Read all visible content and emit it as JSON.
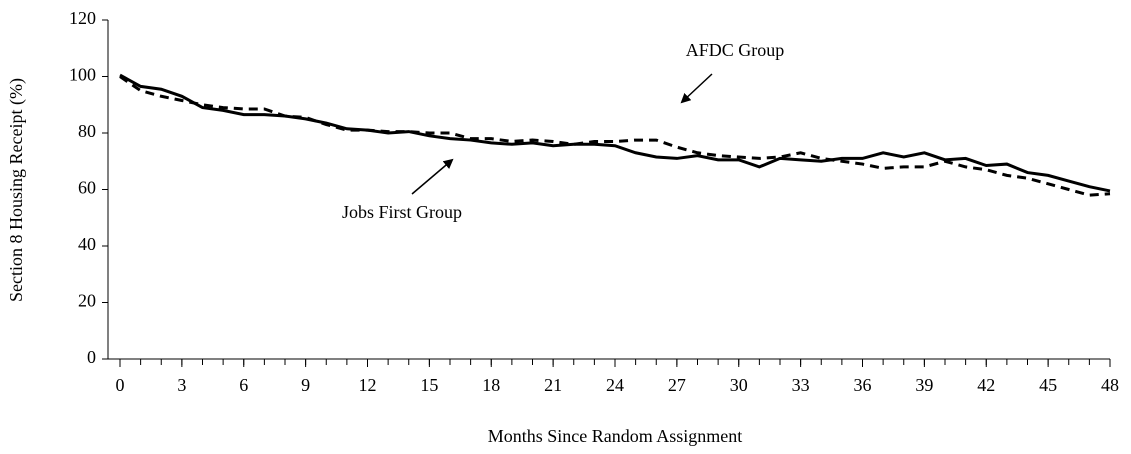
{
  "chart_data": {
    "type": "line",
    "x_label": "Months Since Random Assignment",
    "y_label": "Section 8 Housing Receipt (%)",
    "x": [
      0,
      1,
      2,
      3,
      4,
      5,
      6,
      7,
      8,
      9,
      10,
      11,
      12,
      13,
      14,
      15,
      16,
      17,
      18,
      19,
      20,
      21,
      22,
      23,
      24,
      25,
      26,
      27,
      28,
      29,
      30,
      31,
      32,
      33,
      34,
      35,
      36,
      37,
      38,
      39,
      40,
      41,
      42,
      43,
      44,
      45,
      46,
      47,
      48
    ],
    "series": [
      {
        "name": "Jobs First Group",
        "color": "#000000",
        "dash": false,
        "values": [
          100.5,
          96.5,
          95.5,
          93,
          89,
          88,
          86.5,
          86.5,
          86,
          85,
          83.5,
          81.5,
          81,
          80,
          80.5,
          79,
          78,
          77.5,
          76.5,
          76,
          76.5,
          75.5,
          76,
          76,
          75.5,
          73,
          71.5,
          71,
          72,
          70.5,
          70.5,
          68,
          71,
          70.5,
          70,
          71,
          71,
          73,
          71.5,
          73,
          70.5,
          71,
          68.5,
          69,
          66,
          65,
          63,
          61,
          59.5
        ]
      },
      {
        "name": "AFDC Group",
        "color": "#000000",
        "dash": true,
        "values": [
          100,
          95,
          93,
          91.5,
          90,
          89,
          88.5,
          88.5,
          86,
          85.5,
          83,
          81,
          81,
          80.5,
          80.5,
          80,
          80,
          78,
          78,
          77,
          77.5,
          77,
          76,
          77,
          77,
          77.5,
          77.5,
          75,
          73,
          72,
          71.5,
          71,
          71.5,
          73,
          71,
          70,
          69,
          67.5,
          68,
          68,
          70,
          68,
          67,
          65,
          64,
          62,
          60,
          58,
          58.5
        ]
      }
    ],
    "xlim": [
      0,
      48
    ],
    "xticks": [
      0,
      3,
      6,
      9,
      12,
      15,
      18,
      21,
      24,
      27,
      30,
      33,
      36,
      39,
      42,
      45,
      48
    ],
    "ylim": [
      0,
      120
    ],
    "yticks": [
      0,
      20,
      40,
      60,
      80,
      100,
      120
    ],
    "grid": false
  }
}
